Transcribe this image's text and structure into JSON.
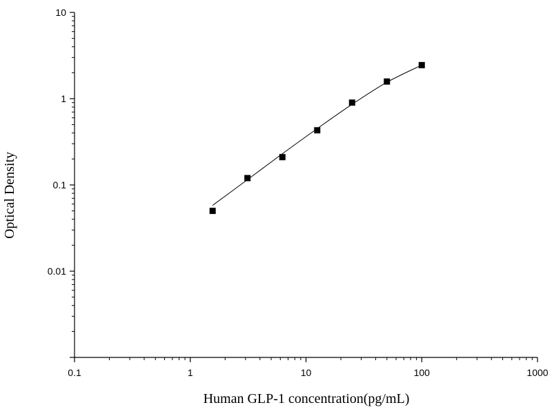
{
  "chart_data": {
    "type": "scatter",
    "xlabel": "Human GLP-1 concentration(pg/mL)",
    "ylabel": "Optical Density",
    "xscale": "log",
    "yscale": "log",
    "xlim": [
      0.1,
      1000
    ],
    "ylim": [
      0.001,
      10
    ],
    "x_ticks": [
      "0.1",
      "1",
      "10",
      "100",
      "1000"
    ],
    "y_ticks": [
      "0.01",
      "0.1",
      "1",
      "10"
    ],
    "series": [
      {
        "marker": "square",
        "color": "#000000",
        "points": [
          {
            "x": 1.56,
            "y": 0.05
          },
          {
            "x": 3.12,
            "y": 0.12
          },
          {
            "x": 6.25,
            "y": 0.21
          },
          {
            "x": 12.5,
            "y": 0.43
          },
          {
            "x": 25,
            "y": 0.9
          },
          {
            "x": 50,
            "y": 1.58
          },
          {
            "x": 100,
            "y": 2.45
          }
        ]
      }
    ],
    "fit_curve": {
      "color": "#000000",
      "points": [
        {
          "x": 1.56,
          "y": 0.058
        },
        {
          "x": 3.12,
          "y": 0.115
        },
        {
          "x": 6.25,
          "y": 0.23
        },
        {
          "x": 12.5,
          "y": 0.45
        },
        {
          "x": 25,
          "y": 0.86
        },
        {
          "x": 50,
          "y": 1.55
        },
        {
          "x": 100,
          "y": 2.45
        }
      ]
    },
    "grid": false,
    "legend": "none"
  }
}
